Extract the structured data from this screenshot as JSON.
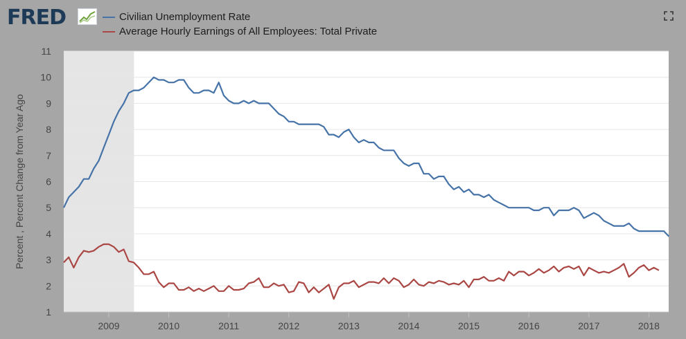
{
  "header": {
    "logo_text": "FRED",
    "logo_icon": "line-graph-icon",
    "expand_icon": "fullscreen-expand-icon"
  },
  "chart_data": {
    "type": "line",
    "ylabel": "Percent , Percent Change from Year Ago",
    "xlabel": "",
    "ylim": [
      1,
      11
    ],
    "yticks": [
      1,
      2,
      3,
      4,
      5,
      6,
      7,
      8,
      9,
      10,
      11
    ],
    "xlim": [
      2008.25,
      2018.33
    ],
    "xticks": [
      {
        "value": 2009,
        "label": "2009"
      },
      {
        "value": 2010,
        "label": "2010"
      },
      {
        "value": 2011,
        "label": "2011"
      },
      {
        "value": 2012,
        "label": "2012"
      },
      {
        "value": 2013,
        "label": "2013"
      },
      {
        "value": 2014,
        "label": "2014"
      },
      {
        "value": 2015,
        "label": "2015"
      },
      {
        "value": 2016,
        "label": "2016"
      },
      {
        "value": 2017,
        "label": "2017"
      },
      {
        "value": 2018,
        "label": "2018"
      }
    ],
    "grid": "horizontal",
    "legend_position": "top-left",
    "recession": {
      "start": 2008.25,
      "end": 2009.42
    },
    "colors": {
      "unemployment": "#4572a7",
      "earnings": "#aa4643",
      "recession": "#e5e5e5",
      "plot_background": "#ffffff",
      "page_background": "#a6a6a6",
      "grid": "#e6e6e6"
    },
    "x_start": "2008-04",
    "series": [
      {
        "name": "Civilian Unemployment Rate",
        "color": "#4572a7",
        "values": [
          5.0,
          5.4,
          5.6,
          5.8,
          6.1,
          6.1,
          6.5,
          6.8,
          7.3,
          7.8,
          8.3,
          8.7,
          9.0,
          9.4,
          9.5,
          9.5,
          9.6,
          9.8,
          10.0,
          9.9,
          9.9,
          9.8,
          9.8,
          9.9,
          9.9,
          9.6,
          9.4,
          9.4,
          9.5,
          9.5,
          9.4,
          9.8,
          9.3,
          9.1,
          9.0,
          9.0,
          9.1,
          9.0,
          9.1,
          9.0,
          9.0,
          9.0,
          8.8,
          8.6,
          8.5,
          8.3,
          8.3,
          8.2,
          8.2,
          8.2,
          8.2,
          8.2,
          8.1,
          7.8,
          7.8,
          7.7,
          7.9,
          8.0,
          7.7,
          7.5,
          7.6,
          7.5,
          7.5,
          7.3,
          7.2,
          7.2,
          7.2,
          6.9,
          6.7,
          6.6,
          6.7,
          6.7,
          6.3,
          6.3,
          6.1,
          6.2,
          6.2,
          5.9,
          5.7,
          5.8,
          5.6,
          5.7,
          5.5,
          5.5,
          5.4,
          5.5,
          5.3,
          5.2,
          5.1,
          5.0,
          5.0,
          5.0,
          5.0,
          5.0,
          4.9,
          4.9,
          5.0,
          5.0,
          4.7,
          4.9,
          4.9,
          4.9,
          5.0,
          4.9,
          4.6,
          4.7,
          4.8,
          4.7,
          4.5,
          4.4,
          4.3,
          4.3,
          4.3,
          4.4,
          4.2,
          4.1,
          4.1,
          4.1,
          4.1,
          4.1,
          4.1,
          3.9
        ]
      },
      {
        "name": "Average Hourly Earnings of All Employees: Total Private",
        "color": "#aa4643",
        "values": [
          2.9,
          3.1,
          2.7,
          3.1,
          3.35,
          3.3,
          3.35,
          3.5,
          3.6,
          3.6,
          3.5,
          3.3,
          3.4,
          2.95,
          2.9,
          2.7,
          2.45,
          2.45,
          2.55,
          2.15,
          1.95,
          2.1,
          2.1,
          1.85,
          1.85,
          1.95,
          1.8,
          1.9,
          1.8,
          1.9,
          2.0,
          1.8,
          1.8,
          2.0,
          1.85,
          1.85,
          1.9,
          2.1,
          2.15,
          2.3,
          1.95,
          1.95,
          2.1,
          2.0,
          2.05,
          1.75,
          1.8,
          2.15,
          2.1,
          1.75,
          1.95,
          1.75,
          1.9,
          2.05,
          1.5,
          1.95,
          2.1,
          2.1,
          2.2,
          1.95,
          2.05,
          2.15,
          2.15,
          2.1,
          2.3,
          2.1,
          2.3,
          2.2,
          1.95,
          2.05,
          2.25,
          2.05,
          2.0,
          2.15,
          2.1,
          2.2,
          2.15,
          2.05,
          2.1,
          2.05,
          2.2,
          1.95,
          2.25,
          2.25,
          2.35,
          2.2,
          2.2,
          2.3,
          2.2,
          2.55,
          2.4,
          2.55,
          2.55,
          2.4,
          2.5,
          2.65,
          2.5,
          2.6,
          2.75,
          2.55,
          2.7,
          2.75,
          2.65,
          2.75,
          2.4,
          2.7,
          2.6,
          2.5,
          2.55,
          2.5,
          2.6,
          2.7,
          2.85,
          2.35,
          2.5,
          2.7,
          2.8,
          2.6,
          2.7,
          2.6
        ]
      }
    ]
  }
}
